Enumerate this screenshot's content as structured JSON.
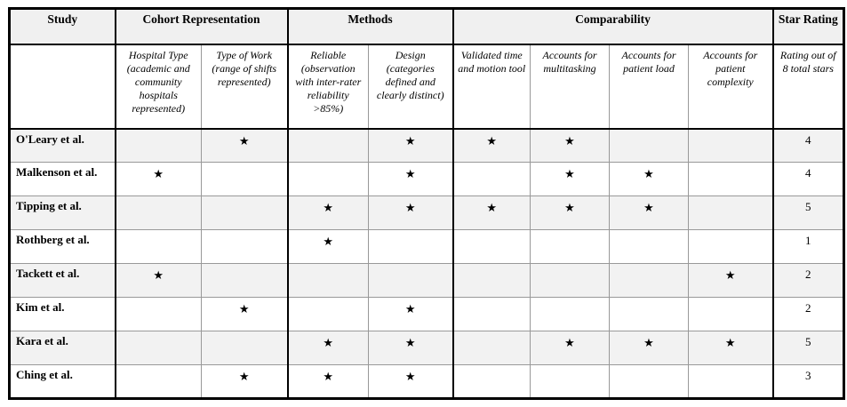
{
  "table": {
    "star_glyph": "★",
    "colors": {
      "thick_border": "#000000",
      "thin_grid_line": "#999999",
      "shaded_row_bg": "#f2f2f2",
      "header_bg": "#f0f0f0"
    },
    "group_headers": {
      "study": "Study",
      "cohort": "Cohort Representation",
      "methods": "Methods",
      "comparability": "Comparability",
      "star_rating": "Star Rating"
    },
    "sub_headers": {
      "study": "",
      "hospital_type": "Hospital Type (academic and community hospitals represented)",
      "type_of_work": "Type of Work (range of shifts represented)",
      "reliable": "Reliable (observation with inter-rater reliability >85%)",
      "design": "Design (categories defined and clearly distinct)",
      "validated_tool": "Validated time and motion tool",
      "multitasking": "Accounts for multitasking",
      "patient_load": "Accounts for patient load",
      "patient_complexity": "Accounts for patient complexity",
      "rating": "Rating out of 8 total stars"
    },
    "rows": [
      {
        "study": "O'Leary et al.",
        "cells": [
          "",
          "★",
          "",
          "★",
          "★",
          "★",
          "",
          ""
        ],
        "rating": "4"
      },
      {
        "study": "Malkenson et al.",
        "cells": [
          "★",
          "",
          "",
          "★",
          "",
          "★",
          "★",
          ""
        ],
        "rating": "4"
      },
      {
        "study": "Tipping et al.",
        "cells": [
          "",
          "",
          "★",
          "★",
          "★",
          "★",
          "★",
          ""
        ],
        "rating": "5"
      },
      {
        "study": "Rothberg et al.",
        "cells": [
          "",
          "",
          "★",
          "",
          "",
          "",
          "",
          ""
        ],
        "rating": "1"
      },
      {
        "study": "Tackett et al.",
        "cells": [
          "★",
          "",
          "",
          "",
          "",
          "",
          "",
          "★"
        ],
        "rating": "2"
      },
      {
        "study": "Kim et al.",
        "cells": [
          "",
          "★",
          "",
          "★",
          "",
          "",
          "",
          ""
        ],
        "rating": "2"
      },
      {
        "study": "Kara et al.",
        "cells": [
          "",
          "",
          "★",
          "★",
          "",
          "★",
          "★",
          "★"
        ],
        "rating": "5"
      },
      {
        "study": "Ching et al.",
        "cells": [
          "",
          "★",
          "★",
          "★",
          "",
          "",
          "",
          ""
        ],
        "rating": "3"
      }
    ]
  }
}
